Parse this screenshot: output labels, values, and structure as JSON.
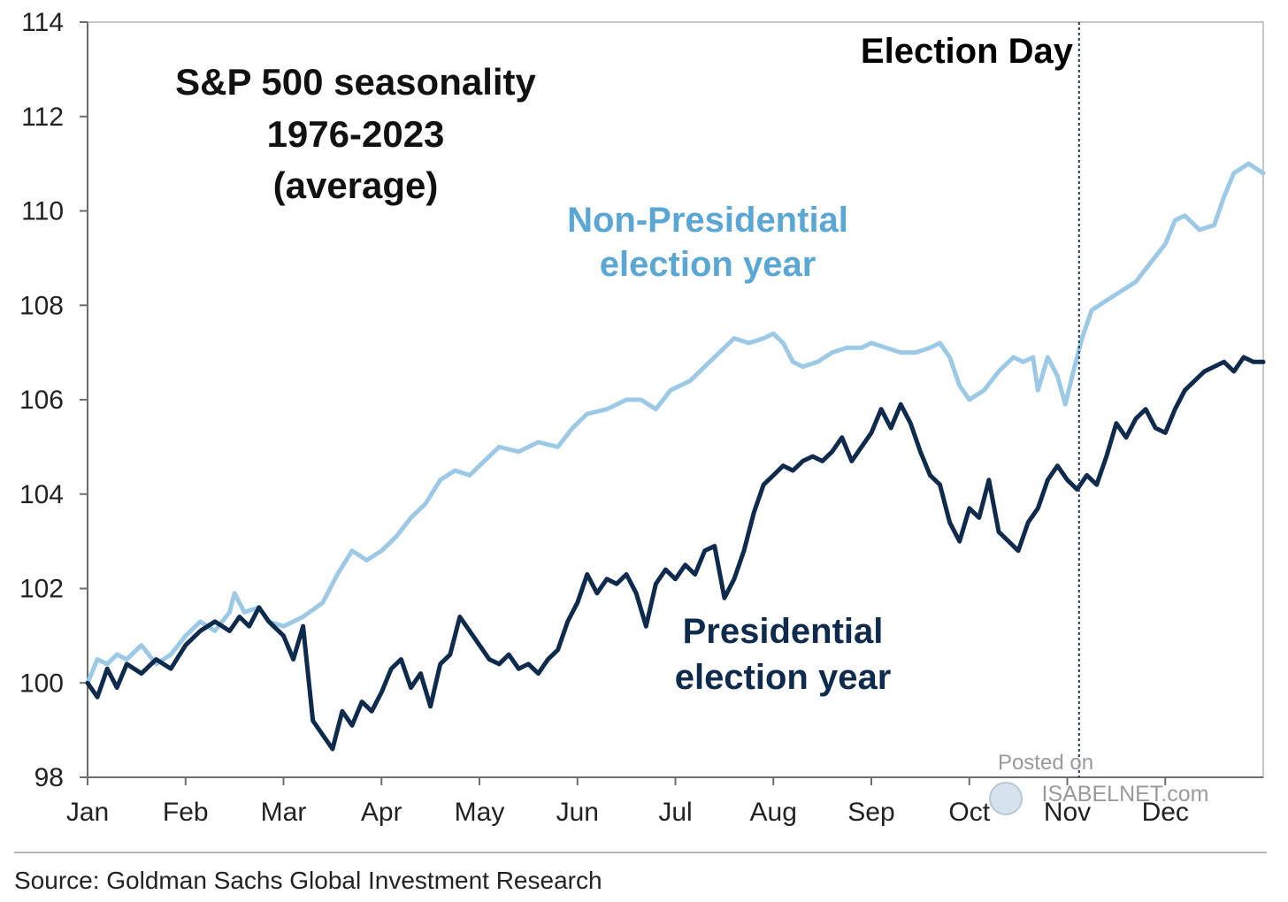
{
  "chart_data": {
    "type": "line",
    "title_lines": [
      "S&P 500 seasonality",
      "1976-2023",
      "(average)"
    ],
    "categories": [
      "Jan",
      "Feb",
      "Mar",
      "Apr",
      "May",
      "Jun",
      "Jul",
      "Aug",
      "Sep",
      "Oct",
      "Nov",
      "Dec"
    ],
    "ylim": [
      98,
      114
    ],
    "yticks": [
      "98",
      "100",
      "102",
      "104",
      "106",
      "108",
      "110",
      "112",
      "114"
    ],
    "xlabel": "",
    "ylabel": "",
    "grid": false,
    "legend": "none",
    "series": [
      {
        "name": "Non-Presidential election year",
        "label_lines": [
          "Non-Presidential",
          "election year"
        ],
        "color": "#9cc9e6",
        "points": [
          [
            0.0,
            100.0
          ],
          [
            0.1,
            100.5
          ],
          [
            0.2,
            100.4
          ],
          [
            0.3,
            100.6
          ],
          [
            0.4,
            100.5
          ],
          [
            0.55,
            100.8
          ],
          [
            0.7,
            100.4
          ],
          [
            0.85,
            100.6
          ],
          [
            1.0,
            101.0
          ],
          [
            1.15,
            101.3
          ],
          [
            1.3,
            101.1
          ],
          [
            1.45,
            101.5
          ],
          [
            1.5,
            101.9
          ],
          [
            1.6,
            101.5
          ],
          [
            1.75,
            101.6
          ],
          [
            1.85,
            101.3
          ],
          [
            2.0,
            101.2
          ],
          [
            2.2,
            101.4
          ],
          [
            2.4,
            101.7
          ],
          [
            2.55,
            102.3
          ],
          [
            2.7,
            102.8
          ],
          [
            2.85,
            102.6
          ],
          [
            3.0,
            102.8
          ],
          [
            3.15,
            103.1
          ],
          [
            3.3,
            103.5
          ],
          [
            3.45,
            103.8
          ],
          [
            3.6,
            104.3
          ],
          [
            3.75,
            104.5
          ],
          [
            3.9,
            104.4
          ],
          [
            4.0,
            104.6
          ],
          [
            4.2,
            105.0
          ],
          [
            4.4,
            104.9
          ],
          [
            4.6,
            105.1
          ],
          [
            4.8,
            105.0
          ],
          [
            4.95,
            105.4
          ],
          [
            5.1,
            105.7
          ],
          [
            5.3,
            105.8
          ],
          [
            5.5,
            106.0
          ],
          [
            5.65,
            106.0
          ],
          [
            5.8,
            105.8
          ],
          [
            5.95,
            106.2
          ],
          [
            6.15,
            106.4
          ],
          [
            6.3,
            106.7
          ],
          [
            6.45,
            107.0
          ],
          [
            6.6,
            107.3
          ],
          [
            6.75,
            107.2
          ],
          [
            6.9,
            107.3
          ],
          [
            7.0,
            107.4
          ],
          [
            7.1,
            107.2
          ],
          [
            7.2,
            106.8
          ],
          [
            7.3,
            106.7
          ],
          [
            7.45,
            106.8
          ],
          [
            7.6,
            107.0
          ],
          [
            7.75,
            107.1
          ],
          [
            7.9,
            107.1
          ],
          [
            8.0,
            107.2
          ],
          [
            8.15,
            107.1
          ],
          [
            8.3,
            107.0
          ],
          [
            8.45,
            107.0
          ],
          [
            8.6,
            107.1
          ],
          [
            8.7,
            107.2
          ],
          [
            8.8,
            106.9
          ],
          [
            8.9,
            106.3
          ],
          [
            9.0,
            106.0
          ],
          [
            9.15,
            106.2
          ],
          [
            9.3,
            106.6
          ],
          [
            9.45,
            106.9
          ],
          [
            9.55,
            106.8
          ],
          [
            9.65,
            106.9
          ],
          [
            9.7,
            106.2
          ],
          [
            9.8,
            106.9
          ],
          [
            9.9,
            106.5
          ],
          [
            9.98,
            105.9
          ],
          [
            10.05,
            106.5
          ],
          [
            10.15,
            107.3
          ],
          [
            10.25,
            107.9
          ],
          [
            10.4,
            108.1
          ],
          [
            10.55,
            108.3
          ],
          [
            10.7,
            108.5
          ],
          [
            10.85,
            108.9
          ],
          [
            11.0,
            109.3
          ],
          [
            11.1,
            109.8
          ],
          [
            11.2,
            109.9
          ],
          [
            11.35,
            109.6
          ],
          [
            11.5,
            109.7
          ],
          [
            11.6,
            110.3
          ],
          [
            11.7,
            110.8
          ],
          [
            11.85,
            111.0
          ],
          [
            12.0,
            110.8
          ]
        ]
      },
      {
        "name": "Presidential election year",
        "label_lines": [
          "Presidential",
          "election year"
        ],
        "color": "#0e2a4d",
        "points": [
          [
            0.0,
            100.0
          ],
          [
            0.1,
            99.7
          ],
          [
            0.2,
            100.3
          ],
          [
            0.3,
            99.9
          ],
          [
            0.4,
            100.4
          ],
          [
            0.55,
            100.2
          ],
          [
            0.7,
            100.5
          ],
          [
            0.85,
            100.3
          ],
          [
            1.0,
            100.8
          ],
          [
            1.15,
            101.1
          ],
          [
            1.3,
            101.3
          ],
          [
            1.45,
            101.1
          ],
          [
            1.55,
            101.4
          ],
          [
            1.65,
            101.2
          ],
          [
            1.75,
            101.6
          ],
          [
            1.85,
            101.3
          ],
          [
            2.0,
            101.0
          ],
          [
            2.1,
            100.5
          ],
          [
            2.2,
            101.2
          ],
          [
            2.3,
            99.2
          ],
          [
            2.4,
            98.9
          ],
          [
            2.5,
            98.6
          ],
          [
            2.6,
            99.4
          ],
          [
            2.7,
            99.1
          ],
          [
            2.8,
            99.6
          ],
          [
            2.9,
            99.4
          ],
          [
            3.0,
            99.8
          ],
          [
            3.1,
            100.3
          ],
          [
            3.2,
            100.5
          ],
          [
            3.3,
            99.9
          ],
          [
            3.4,
            100.2
          ],
          [
            3.5,
            99.5
          ],
          [
            3.6,
            100.4
          ],
          [
            3.7,
            100.6
          ],
          [
            3.8,
            101.4
          ],
          [
            3.9,
            101.1
          ],
          [
            4.0,
            100.8
          ],
          [
            4.1,
            100.5
          ],
          [
            4.2,
            100.4
          ],
          [
            4.3,
            100.6
          ],
          [
            4.4,
            100.3
          ],
          [
            4.5,
            100.4
          ],
          [
            4.6,
            100.2
          ],
          [
            4.7,
            100.5
          ],
          [
            4.8,
            100.7
          ],
          [
            4.9,
            101.3
          ],
          [
            5.0,
            101.7
          ],
          [
            5.1,
            102.3
          ],
          [
            5.2,
            101.9
          ],
          [
            5.3,
            102.2
          ],
          [
            5.4,
            102.1
          ],
          [
            5.5,
            102.3
          ],
          [
            5.6,
            101.9
          ],
          [
            5.7,
            101.2
          ],
          [
            5.8,
            102.1
          ],
          [
            5.9,
            102.4
          ],
          [
            6.0,
            102.2
          ],
          [
            6.1,
            102.5
          ],
          [
            6.2,
            102.3
          ],
          [
            6.3,
            102.8
          ],
          [
            6.4,
            102.9
          ],
          [
            6.5,
            101.8
          ],
          [
            6.6,
            102.2
          ],
          [
            6.7,
            102.8
          ],
          [
            6.8,
            103.6
          ],
          [
            6.9,
            104.2
          ],
          [
            7.0,
            104.4
          ],
          [
            7.1,
            104.6
          ],
          [
            7.2,
            104.5
          ],
          [
            7.3,
            104.7
          ],
          [
            7.4,
            104.8
          ],
          [
            7.5,
            104.7
          ],
          [
            7.6,
            104.9
          ],
          [
            7.7,
            105.2
          ],
          [
            7.8,
            104.7
          ],
          [
            7.9,
            105.0
          ],
          [
            8.0,
            105.3
          ],
          [
            8.1,
            105.8
          ],
          [
            8.2,
            105.4
          ],
          [
            8.3,
            105.9
          ],
          [
            8.4,
            105.5
          ],
          [
            8.5,
            104.9
          ],
          [
            8.6,
            104.4
          ],
          [
            8.7,
            104.2
          ],
          [
            8.8,
            103.4
          ],
          [
            8.9,
            103.0
          ],
          [
            9.0,
            103.7
          ],
          [
            9.1,
            103.5
          ],
          [
            9.2,
            104.3
          ],
          [
            9.3,
            103.2
          ],
          [
            9.4,
            103.0
          ],
          [
            9.5,
            102.8
          ],
          [
            9.6,
            103.4
          ],
          [
            9.7,
            103.7
          ],
          [
            9.8,
            104.3
          ],
          [
            9.9,
            104.6
          ],
          [
            10.0,
            104.3
          ],
          [
            10.1,
            104.1
          ],
          [
            10.2,
            104.4
          ],
          [
            10.3,
            104.2
          ],
          [
            10.4,
            104.8
          ],
          [
            10.5,
            105.5
          ],
          [
            10.6,
            105.2
          ],
          [
            10.7,
            105.6
          ],
          [
            10.8,
            105.8
          ],
          [
            10.9,
            105.4
          ],
          [
            11.0,
            105.3
          ],
          [
            11.1,
            105.8
          ],
          [
            11.2,
            106.2
          ],
          [
            11.3,
            106.4
          ],
          [
            11.4,
            106.6
          ],
          [
            11.5,
            106.7
          ],
          [
            11.6,
            106.8
          ],
          [
            11.7,
            106.6
          ],
          [
            11.8,
            106.9
          ],
          [
            11.9,
            106.8
          ],
          [
            12.0,
            106.8
          ]
        ]
      }
    ],
    "annotations": [
      {
        "text": "Election Day",
        "x": 10.12,
        "style": "dotted-vertical-line"
      }
    ]
  },
  "watermark": {
    "line1": "Posted on",
    "line2": "ISABELNET.com"
  },
  "source": "Source: Goldman Sachs Global Investment Research"
}
